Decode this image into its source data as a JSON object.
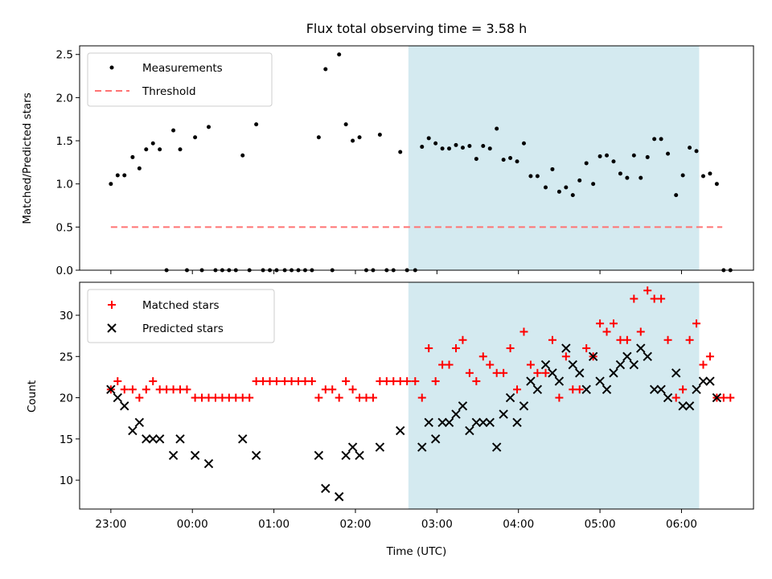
{
  "title": "Flux total observing time = 3.58 h",
  "colors": {
    "measurement": "#000000",
    "threshold": "#ff7373",
    "matched": "#ff0000",
    "predicted": "#000000",
    "shade": "#d4eaf0"
  },
  "chart_data": [
    {
      "type": "scatter",
      "ylabel": "Matched/Predicted stars",
      "ylim": [
        0,
        2.6
      ],
      "yticks": [
        "0.0",
        "0.5",
        "1.0",
        "1.5",
        "2.0",
        "2.5"
      ],
      "ytick_values": [
        0,
        0.5,
        1.0,
        1.5,
        2.0,
        2.5
      ],
      "legend": [
        "Measurements",
        "Threshold"
      ],
      "legend_position": "top-left",
      "threshold": {
        "value": 0.5,
        "x_start": "23:00",
        "x_end": "06:30"
      },
      "shaded_span": [
        "02:39",
        "06:13"
      ],
      "series": [
        {
          "name": "Measurements",
          "points": [
            [
              "23:00",
              1.0
            ],
            [
              "23:05",
              1.1
            ],
            [
              "23:10",
              1.1
            ],
            [
              "23:16",
              1.31
            ],
            [
              "23:21",
              1.18
            ],
            [
              "23:26",
              1.4
            ],
            [
              "23:31",
              1.47
            ],
            [
              "23:36",
              1.4
            ],
            [
              "23:41",
              0.0
            ],
            [
              "23:46",
              1.62
            ],
            [
              "23:51",
              1.4
            ],
            [
              "23:56",
              0.0
            ],
            [
              "00:02",
              1.54
            ],
            [
              "00:07",
              0.0
            ],
            [
              "00:12",
              1.66
            ],
            [
              "00:17",
              0.0
            ],
            [
              "00:22",
              0.0
            ],
            [
              "00:27",
              0.0
            ],
            [
              "00:32",
              0.0
            ],
            [
              "00:37",
              1.33
            ],
            [
              "00:42",
              0.0
            ],
            [
              "00:47",
              1.69
            ],
            [
              "00:52",
              0.0
            ],
            [
              "00:57",
              0.0
            ],
            [
              "01:02",
              0.0
            ],
            [
              "01:08",
              0.0
            ],
            [
              "01:13",
              0.0
            ],
            [
              "01:18",
              0.0
            ],
            [
              "01:23",
              0.0
            ],
            [
              "01:28",
              0.0
            ],
            [
              "01:33",
              1.54
            ],
            [
              "01:38",
              2.33
            ],
            [
              "01:43",
              0.0
            ],
            [
              "01:48",
              2.5
            ],
            [
              "01:53",
              1.69
            ],
            [
              "01:58",
              1.5
            ],
            [
              "02:03",
              1.54
            ],
            [
              "02:08",
              0.0
            ],
            [
              "02:13",
              0.0
            ],
            [
              "02:18",
              1.57
            ],
            [
              "02:23",
              0.0
            ],
            [
              "02:28",
              0.0
            ],
            [
              "02:33",
              1.37
            ],
            [
              "02:38",
              0.0
            ],
            [
              "02:44",
              0.0
            ],
            [
              "02:49",
              1.43
            ],
            [
              "02:54",
              1.53
            ],
            [
              "02:59",
              1.47
            ],
            [
              "03:04",
              1.41
            ],
            [
              "03:09",
              1.41
            ],
            [
              "03:14",
              1.45
            ],
            [
              "03:19",
              1.42
            ],
            [
              "03:24",
              1.44
            ],
            [
              "03:29",
              1.29
            ],
            [
              "03:34",
              1.44
            ],
            [
              "03:39",
              1.41
            ],
            [
              "03:44",
              1.64
            ],
            [
              "03:49",
              1.28
            ],
            [
              "03:54",
              1.3
            ],
            [
              "03:59",
              1.26
            ],
            [
              "04:04",
              1.47
            ],
            [
              "04:09",
              1.09
            ],
            [
              "04:14",
              1.09
            ],
            [
              "04:20",
              0.96
            ],
            [
              "04:25",
              1.17
            ],
            [
              "04:30",
              0.91
            ],
            [
              "04:35",
              0.96
            ],
            [
              "04:40",
              0.87
            ],
            [
              "04:45",
              1.04
            ],
            [
              "04:50",
              1.24
            ],
            [
              "04:55",
              1.0
            ],
            [
              "05:00",
              1.32
            ],
            [
              "05:05",
              1.33
            ],
            [
              "05:10",
              1.26
            ],
            [
              "05:15",
              1.12
            ],
            [
              "05:20",
              1.07
            ],
            [
              "05:25",
              1.33
            ],
            [
              "05:30",
              1.07
            ],
            [
              "05:35",
              1.31
            ],
            [
              "05:40",
              1.52
            ],
            [
              "05:45",
              1.52
            ],
            [
              "05:50",
              1.35
            ],
            [
              "05:56",
              0.87
            ],
            [
              "06:01",
              1.1
            ],
            [
              "06:06",
              1.42
            ],
            [
              "06:11",
              1.38
            ],
            [
              "06:16",
              1.09
            ],
            [
              "06:21",
              1.12
            ],
            [
              "06:26",
              1.0
            ],
            [
              "06:31",
              0.0
            ],
            [
              "06:36",
              0.0
            ]
          ]
        }
      ]
    },
    {
      "type": "scatter",
      "xlabel": "Time (UTC)",
      "ylabel": "Count",
      "ylim": [
        6.5,
        34
      ],
      "yticks": [
        "10",
        "15",
        "20",
        "25",
        "30"
      ],
      "ytick_values": [
        10,
        15,
        20,
        25,
        30
      ],
      "xticks": [
        "23:00",
        "00:00",
        "01:00",
        "02:00",
        "03:00",
        "04:00",
        "05:00",
        "06:00"
      ],
      "xlim": [
        "22:37",
        "06:53"
      ],
      "legend": [
        "Matched stars",
        "Predicted stars"
      ],
      "legend_position": "top-left",
      "shaded_span": [
        "02:39",
        "06:13"
      ],
      "series": [
        {
          "name": "Matched stars",
          "marker": "+",
          "points": [
            [
              "23:00",
              21
            ],
            [
              "23:05",
              22
            ],
            [
              "23:10",
              21
            ],
            [
              "23:16",
              21
            ],
            [
              "23:21",
              20
            ],
            [
              "23:26",
              21
            ],
            [
              "23:31",
              22
            ],
            [
              "23:36",
              21
            ],
            [
              "23:41",
              21
            ],
            [
              "23:46",
              21
            ],
            [
              "23:51",
              21
            ],
            [
              "23:56",
              21
            ],
            [
              "00:02",
              20
            ],
            [
              "00:07",
              20
            ],
            [
              "00:12",
              20
            ],
            [
              "00:17",
              20
            ],
            [
              "00:22",
              20
            ],
            [
              "00:27",
              20
            ],
            [
              "00:32",
              20
            ],
            [
              "00:37",
              20
            ],
            [
              "00:42",
              20
            ],
            [
              "00:47",
              22
            ],
            [
              "00:52",
              22
            ],
            [
              "00:57",
              22
            ],
            [
              "01:02",
              22
            ],
            [
              "01:08",
              22
            ],
            [
              "01:13",
              22
            ],
            [
              "01:18",
              22
            ],
            [
              "01:23",
              22
            ],
            [
              "01:28",
              22
            ],
            [
              "01:33",
              20
            ],
            [
              "01:38",
              21
            ],
            [
              "01:43",
              21
            ],
            [
              "01:48",
              20
            ],
            [
              "01:53",
              22
            ],
            [
              "01:58",
              21
            ],
            [
              "02:03",
              20
            ],
            [
              "02:08",
              20
            ],
            [
              "02:13",
              20
            ],
            [
              "02:18",
              22
            ],
            [
              "02:23",
              22
            ],
            [
              "02:28",
              22
            ],
            [
              "02:33",
              22
            ],
            [
              "02:38",
              22
            ],
            [
              "02:44",
              22
            ],
            [
              "02:49",
              20
            ],
            [
              "02:54",
              26
            ],
            [
              "02:59",
              22
            ],
            [
              "03:04",
              24
            ],
            [
              "03:09",
              24
            ],
            [
              "03:14",
              26
            ],
            [
              "03:19",
              27
            ],
            [
              "03:24",
              23
            ],
            [
              "03:29",
              22
            ],
            [
              "03:34",
              25
            ],
            [
              "03:39",
              24
            ],
            [
              "03:44",
              23
            ],
            [
              "03:49",
              23
            ],
            [
              "03:54",
              26
            ],
            [
              "03:59",
              21
            ],
            [
              "04:04",
              28
            ],
            [
              "04:09",
              24
            ],
            [
              "04:14",
              23
            ],
            [
              "04:20",
              23
            ],
            [
              "04:25",
              27
            ],
            [
              "04:30",
              20
            ],
            [
              "04:35",
              25
            ],
            [
              "04:40",
              21
            ],
            [
              "04:45",
              21
            ],
            [
              "04:50",
              26
            ],
            [
              "04:55",
              25
            ],
            [
              "05:00",
              29
            ],
            [
              "05:05",
              28
            ],
            [
              "05:10",
              29
            ],
            [
              "05:15",
              27
            ],
            [
              "05:20",
              27
            ],
            [
              "05:25",
              32
            ],
            [
              "05:30",
              28
            ],
            [
              "05:35",
              33
            ],
            [
              "05:40",
              32
            ],
            [
              "05:45",
              32
            ],
            [
              "05:50",
              27
            ],
            [
              "05:56",
              20
            ],
            [
              "06:01",
              21
            ],
            [
              "06:06",
              27
            ],
            [
              "06:11",
              29
            ],
            [
              "06:16",
              24
            ],
            [
              "06:21",
              25
            ],
            [
              "06:26",
              20
            ],
            [
              "06:31",
              20
            ],
            [
              "06:36",
              20
            ]
          ]
        },
        {
          "name": "Predicted stars",
          "marker": "x",
          "points": [
            [
              "23:00",
              21
            ],
            [
              "23:05",
              20
            ],
            [
              "23:10",
              19
            ],
            [
              "23:16",
              16
            ],
            [
              "23:21",
              17
            ],
            [
              "23:26",
              15
            ],
            [
              "23:31",
              15
            ],
            [
              "23:36",
              15
            ],
            [
              "23:46",
              13
            ],
            [
              "23:51",
              15
            ],
            [
              "00:02",
              13
            ],
            [
              "00:12",
              12
            ],
            [
              "00:37",
              15
            ],
            [
              "00:47",
              13
            ],
            [
              "01:33",
              13
            ],
            [
              "01:38",
              9
            ],
            [
              "01:48",
              8
            ],
            [
              "01:53",
              13
            ],
            [
              "01:58",
              14
            ],
            [
              "02:03",
              13
            ],
            [
              "02:18",
              14
            ],
            [
              "02:33",
              16
            ],
            [
              "02:49",
              14
            ],
            [
              "02:54",
              17
            ],
            [
              "02:59",
              15
            ],
            [
              "03:04",
              17
            ],
            [
              "03:09",
              17
            ],
            [
              "03:14",
              18
            ],
            [
              "03:19",
              19
            ],
            [
              "03:24",
              16
            ],
            [
              "03:29",
              17
            ],
            [
              "03:34",
              17
            ],
            [
              "03:39",
              17
            ],
            [
              "03:44",
              14
            ],
            [
              "03:49",
              18
            ],
            [
              "03:54",
              20
            ],
            [
              "03:59",
              17
            ],
            [
              "04:04",
              19
            ],
            [
              "04:09",
              22
            ],
            [
              "04:14",
              21
            ],
            [
              "04:20",
              24
            ],
            [
              "04:25",
              23
            ],
            [
              "04:30",
              22
            ],
            [
              "04:35",
              26
            ],
            [
              "04:40",
              24
            ],
            [
              "04:45",
              23
            ],
            [
              "04:50",
              21
            ],
            [
              "04:55",
              25
            ],
            [
              "05:00",
              22
            ],
            [
              "05:05",
              21
            ],
            [
              "05:10",
              23
            ],
            [
              "05:15",
              24
            ],
            [
              "05:20",
              25
            ],
            [
              "05:25",
              24
            ],
            [
              "05:30",
              26
            ],
            [
              "05:35",
              25
            ],
            [
              "05:40",
              21
            ],
            [
              "05:45",
              21
            ],
            [
              "05:50",
              20
            ],
            [
              "05:56",
              23
            ],
            [
              "06:01",
              19
            ],
            [
              "06:06",
              19
            ],
            [
              "06:11",
              21
            ],
            [
              "06:16",
              22
            ],
            [
              "06:21",
              22
            ],
            [
              "06:26",
              20
            ]
          ]
        }
      ]
    }
  ]
}
